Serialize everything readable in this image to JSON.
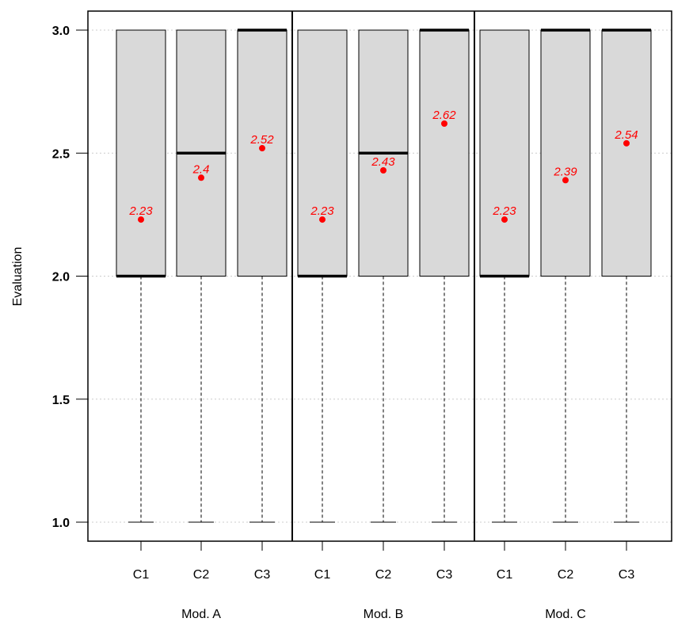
{
  "chart_data": {
    "type": "boxplot",
    "ylabel": "Evaluation",
    "ylim": [
      0.9,
      3.08
    ],
    "yticks": [
      "1.0",
      "1.5",
      "2.0",
      "2.5",
      "3.0"
    ],
    "grid": "horizontal dotted",
    "groups": [
      "Mod. A",
      "Mod. B",
      "Mod. C"
    ],
    "categories": [
      "C1",
      "C2",
      "C3"
    ],
    "boxes": [
      {
        "group": "Mod. A",
        "category": "C1",
        "min": 1.0,
        "q1": 2.0,
        "median": 2.0,
        "q3": 3.0,
        "max": 3.0,
        "mean": 2.23,
        "mean_label": "2.23"
      },
      {
        "group": "Mod. A",
        "category": "C2",
        "min": 1.0,
        "q1": 2.0,
        "median": 2.5,
        "q3": 3.0,
        "max": 3.0,
        "mean": 2.4,
        "mean_label": "2.4"
      },
      {
        "group": "Mod. A",
        "category": "C3",
        "min": 1.0,
        "q1": 2.0,
        "median": 3.0,
        "q3": 3.0,
        "max": 3.0,
        "mean": 2.52,
        "mean_label": "2.52"
      },
      {
        "group": "Mod. B",
        "category": "C1",
        "min": 1.0,
        "q1": 2.0,
        "median": 2.0,
        "q3": 3.0,
        "max": 3.0,
        "mean": 2.23,
        "mean_label": "2.23"
      },
      {
        "group": "Mod. B",
        "category": "C2",
        "min": 1.0,
        "q1": 2.0,
        "median": 2.5,
        "q3": 3.0,
        "max": 3.0,
        "mean": 2.43,
        "mean_label": "2.43"
      },
      {
        "group": "Mod. B",
        "category": "C3",
        "min": 1.0,
        "q1": 2.0,
        "median": 3.0,
        "q3": 3.0,
        "max": 3.0,
        "mean": 2.62,
        "mean_label": "2.62"
      },
      {
        "group": "Mod. C",
        "category": "C1",
        "min": 1.0,
        "q1": 2.0,
        "median": 2.0,
        "q3": 3.0,
        "max": 3.0,
        "mean": 2.23,
        "mean_label": "2.23"
      },
      {
        "group": "Mod. C",
        "category": "C2",
        "min": 1.0,
        "q1": 2.0,
        "median": 3.0,
        "q3": 3.0,
        "max": 3.0,
        "mean": 2.39,
        "mean_label": "2.39"
      },
      {
        "group": "Mod. C",
        "category": "C3",
        "min": 1.0,
        "q1": 2.0,
        "median": 3.0,
        "q3": 3.0,
        "max": 3.0,
        "mean": 2.54,
        "mean_label": "2.54"
      }
    ],
    "colors": {
      "box_fill": "#d9d9d9",
      "mean": "#ff0000",
      "grid": "#cccccc",
      "axis": "#000000"
    }
  }
}
